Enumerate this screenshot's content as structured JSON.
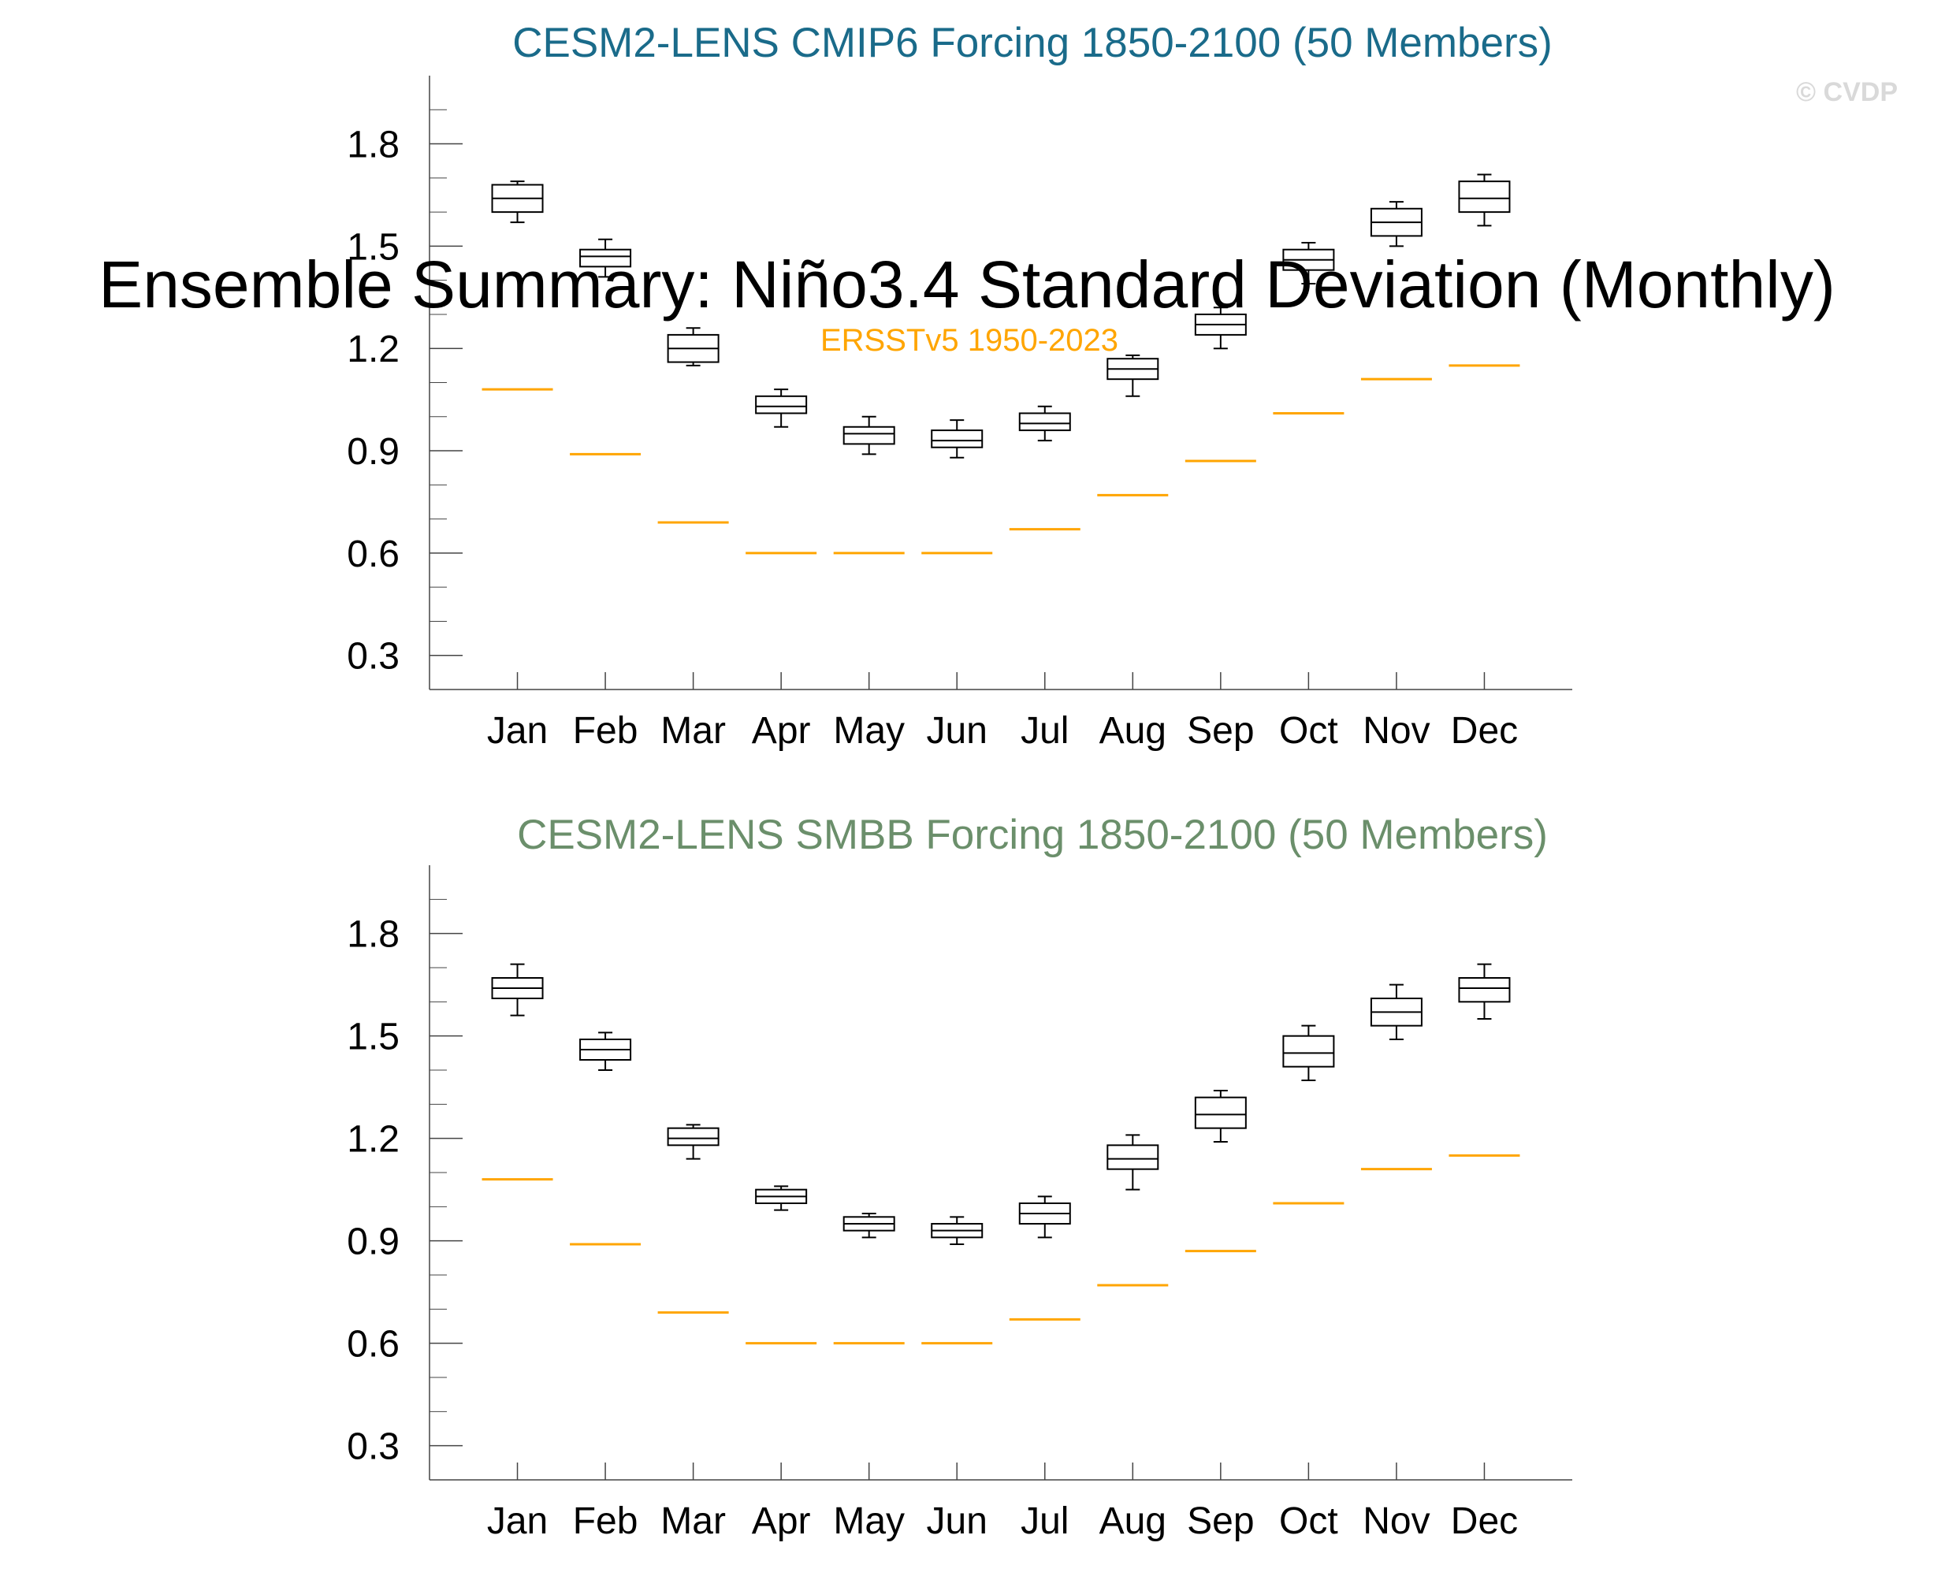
{
  "main_title": "Ensemble Summary: Niño3.4 Standard Deviation (Monthly)",
  "credit": "© CVDP",
  "colors": {
    "obs": "#ffa500",
    "panel1_title": "#1a6b8a",
    "panel2_title": "#6b8f6b",
    "credit": "#d9d9d9"
  },
  "obs_label": "ERSSTv5 1950-2023",
  "chart_data": [
    {
      "type": "box",
      "title": "CESM2-LENS CMIP6 Forcing 1850-2100 (50 Members)",
      "categories": [
        "Jan",
        "Feb",
        "Mar",
        "Apr",
        "May",
        "Jun",
        "Jul",
        "Aug",
        "Sep",
        "Oct",
        "Nov",
        "Dec"
      ],
      "ylim": [
        0.2,
        2.0
      ],
      "yticks": [
        0.3,
        0.6,
        0.9,
        1.2,
        1.5,
        1.8
      ],
      "ytick_labels": [
        "0.3",
        "0.6",
        "0.9",
        "1.2",
        "1.5",
        "1.8"
      ],
      "boxes": [
        {
          "min": 1.57,
          "q1": 1.6,
          "median": 1.64,
          "q3": 1.68,
          "max": 1.69
        },
        {
          "min": 1.41,
          "q1": 1.44,
          "median": 1.47,
          "q3": 1.49,
          "max": 1.52
        },
        {
          "min": 1.15,
          "q1": 1.16,
          "median": 1.2,
          "q3": 1.24,
          "max": 1.26
        },
        {
          "min": 0.97,
          "q1": 1.01,
          "median": 1.03,
          "q3": 1.06,
          "max": 1.08
        },
        {
          "min": 0.89,
          "q1": 0.92,
          "median": 0.95,
          "q3": 0.97,
          "max": 1.0
        },
        {
          "min": 0.88,
          "q1": 0.91,
          "median": 0.93,
          "q3": 0.96,
          "max": 0.99
        },
        {
          "min": 0.93,
          "q1": 0.96,
          "median": 0.98,
          "q3": 1.01,
          "max": 1.03
        },
        {
          "min": 1.06,
          "q1": 1.11,
          "median": 1.14,
          "q3": 1.17,
          "max": 1.18
        },
        {
          "min": 1.2,
          "q1": 1.24,
          "median": 1.27,
          "q3": 1.3,
          "max": 1.32
        },
        {
          "min": 1.39,
          "q1": 1.43,
          "median": 1.46,
          "q3": 1.49,
          "max": 1.51
        },
        {
          "min": 1.5,
          "q1": 1.53,
          "median": 1.57,
          "q3": 1.61,
          "max": 1.63
        },
        {
          "min": 1.56,
          "q1": 1.6,
          "median": 1.64,
          "q3": 1.69,
          "max": 1.71
        }
      ],
      "observations": [
        1.08,
        0.89,
        0.69,
        0.6,
        0.6,
        0.6,
        0.67,
        0.77,
        0.87,
        1.01,
        1.11,
        1.15
      ]
    },
    {
      "type": "box",
      "title": "CESM2-LENS SMBB Forcing 1850-2100 (50 Members)",
      "categories": [
        "Jan",
        "Feb",
        "Mar",
        "Apr",
        "May",
        "Jun",
        "Jul",
        "Aug",
        "Sep",
        "Oct",
        "Nov",
        "Dec"
      ],
      "ylim": [
        0.2,
        2.0
      ],
      "yticks": [
        0.3,
        0.6,
        0.9,
        1.2,
        1.5,
        1.8
      ],
      "ytick_labels": [
        "0.3",
        "0.6",
        "0.9",
        "1.2",
        "1.5",
        "1.8"
      ],
      "boxes": [
        {
          "min": 1.56,
          "q1": 1.61,
          "median": 1.64,
          "q3": 1.67,
          "max": 1.71
        },
        {
          "min": 1.4,
          "q1": 1.43,
          "median": 1.46,
          "q3": 1.49,
          "max": 1.51
        },
        {
          "min": 1.14,
          "q1": 1.18,
          "median": 1.2,
          "q3": 1.23,
          "max": 1.24
        },
        {
          "min": 0.99,
          "q1": 1.01,
          "median": 1.03,
          "q3": 1.05,
          "max": 1.06
        },
        {
          "min": 0.91,
          "q1": 0.93,
          "median": 0.95,
          "q3": 0.97,
          "max": 0.98
        },
        {
          "min": 0.89,
          "q1": 0.91,
          "median": 0.93,
          "q3": 0.95,
          "max": 0.97
        },
        {
          "min": 0.91,
          "q1": 0.95,
          "median": 0.98,
          "q3": 1.01,
          "max": 1.03
        },
        {
          "min": 1.05,
          "q1": 1.11,
          "median": 1.14,
          "q3": 1.18,
          "max": 1.21
        },
        {
          "min": 1.19,
          "q1": 1.23,
          "median": 1.27,
          "q3": 1.32,
          "max": 1.34
        },
        {
          "min": 1.37,
          "q1": 1.41,
          "median": 1.45,
          "q3": 1.5,
          "max": 1.53
        },
        {
          "min": 1.49,
          "q1": 1.53,
          "median": 1.57,
          "q3": 1.61,
          "max": 1.65
        },
        {
          "min": 1.55,
          "q1": 1.6,
          "median": 1.64,
          "q3": 1.67,
          "max": 1.71
        }
      ],
      "observations": [
        1.08,
        0.89,
        0.69,
        0.6,
        0.6,
        0.6,
        0.67,
        0.77,
        0.87,
        1.01,
        1.11,
        1.15
      ]
    }
  ]
}
